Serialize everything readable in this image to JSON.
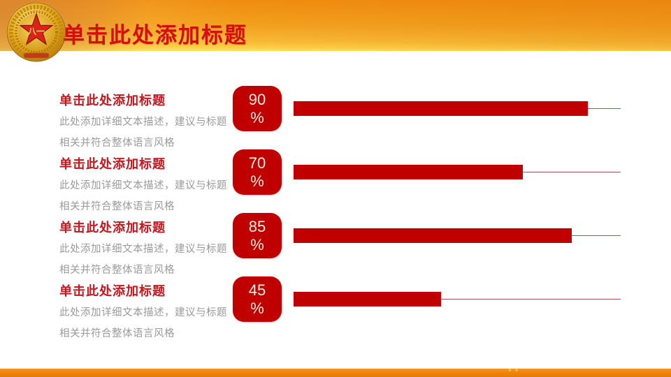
{
  "slide": {
    "header": {
      "title": "单击此处添加标题",
      "emblem_label": "八一"
    },
    "footer": {
      "ornament": "✦✦"
    }
  },
  "chart_data": {
    "type": "bar",
    "orientation": "horizontal",
    "axis_max": 100,
    "unit": "%",
    "grid": "off",
    "items": [
      {
        "heading": "单击此处添加标题",
        "description": "此处添加详细文本描述，建议与标题相关并符合整体语言风格",
        "value": 90
      },
      {
        "heading": "单击此处添加标题",
        "description": "此处添加详细文本描述，建议与标题相关并符合整体语言风格",
        "value": 70
      },
      {
        "heading": "单击此处添加标题",
        "description": "此处添加详细文本描述，建议与标题相关并符合整体语言风格",
        "value": 85
      },
      {
        "heading": "单击此处添加标题",
        "description": "此处添加详细文本描述，建议与标题相关并符合整体语言风格",
        "value": 45
      }
    ]
  },
  "colors": {
    "accent_red": "#c00000",
    "title_red": "#d60e10",
    "heading_red": "#c01920",
    "description_gray": "#9a9a9a",
    "axis_line": "#a35454",
    "header_orange_dark": "#ee8a0e",
    "header_yellow_light": "#ffe45c",
    "footer_orange": "#ef8511",
    "emblem_gold": "#e8b423",
    "emblem_star_red": "#dc2318"
  }
}
